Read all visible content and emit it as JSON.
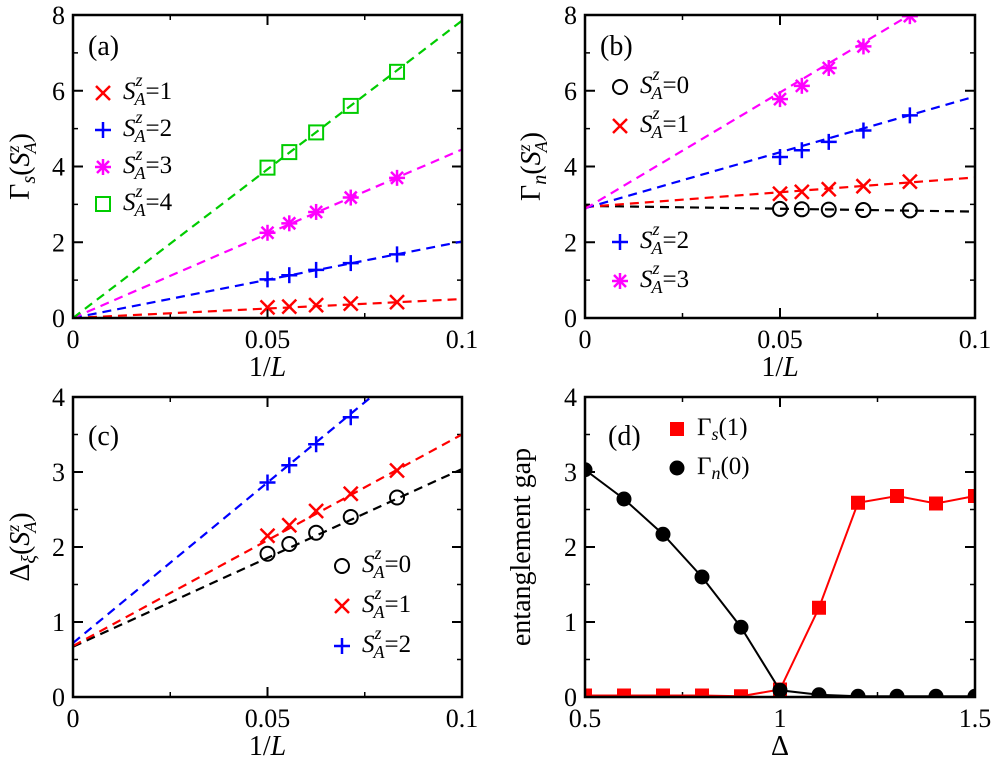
{
  "chart_data": [
    {
      "id": "a",
      "type": "scatter",
      "panel_label": "(a)",
      "xlabel": "1/L",
      "ylabel": "Γs(SzA)",
      "xlim": [
        0,
        0.1
      ],
      "ylim": [
        0,
        8
      ],
      "xticks": [
        "0",
        "0.05",
        "0.1"
      ],
      "yticks": [
        "0",
        "2",
        "4",
        "6",
        "8"
      ],
      "x": [
        0.05,
        0.0556,
        0.0625,
        0.0714,
        0.0833
      ],
      "series": [
        {
          "name": "SzA=1",
          "legend_value": "1",
          "color": "#ff0000",
          "marker": "x",
          "values": [
            0.28,
            0.3,
            0.34,
            0.38,
            0.42
          ],
          "fit": [
            0.0,
            5.0
          ]
        },
        {
          "name": "SzA=2",
          "legend_value": "2",
          "color": "#0000ff",
          "marker": "plus",
          "values": [
            1.02,
            1.13,
            1.27,
            1.45,
            1.68
          ],
          "fit": [
            0.0,
            20.2
          ]
        },
        {
          "name": "SzA=3",
          "legend_value": "3",
          "color": "#ff00ff",
          "marker": "star",
          "values": [
            2.25,
            2.5,
            2.8,
            3.18,
            3.7
          ],
          "fit": [
            0.0,
            44.5
          ]
        },
        {
          "name": "SzA=4",
          "legend_value": "4",
          "color": "#00cc00",
          "marker": "square",
          "values": [
            3.97,
            4.38,
            4.9,
            5.6,
            6.5
          ],
          "fit": [
            0.0,
            78.5
          ]
        }
      ],
      "legend_position": "top-left"
    },
    {
      "id": "b",
      "type": "scatter",
      "panel_label": "(b)",
      "xlabel": "1/L",
      "ylabel": "Γn(SzA)",
      "xlim": [
        0,
        0.1
      ],
      "ylim": [
        0,
        8
      ],
      "xticks": [
        "0",
        "0.05",
        "0.1"
      ],
      "yticks": [
        "0",
        "2",
        "4",
        "6",
        "8"
      ],
      "x": [
        0.05,
        0.0556,
        0.0625,
        0.0714,
        0.0833
      ],
      "series": [
        {
          "name": "SzA=0",
          "legend_value": "0",
          "color": "#000000",
          "marker": "circle",
          "values": [
            2.88,
            2.87,
            2.86,
            2.85,
            2.84
          ],
          "fit": [
            2.96,
            -1.5
          ]
        },
        {
          "name": "SzA=1",
          "legend_value": "1",
          "color": "#ff0000",
          "marker": "x",
          "values": [
            3.28,
            3.33,
            3.4,
            3.48,
            3.6
          ],
          "fit": [
            2.93,
            7.8
          ]
        },
        {
          "name": "SzA=2",
          "legend_value": "2",
          "color": "#0000ff",
          "marker": "plus",
          "values": [
            4.25,
            4.43,
            4.65,
            4.95,
            5.35
          ],
          "fit": [
            2.9,
            29.5
          ]
        },
        {
          "name": "SzA=3",
          "legend_value": "3",
          "color": "#ff00ff",
          "marker": "star",
          "values": [
            5.78,
            6.13,
            6.6,
            7.17,
            7.97
          ],
          "fit": [
            2.88,
            61.5
          ]
        }
      ],
      "legend_position": "top-right / lower-right"
    },
    {
      "id": "c",
      "type": "scatter",
      "panel_label": "(c)",
      "xlabel": "1/L",
      "ylabel": "Δξ(SzA)",
      "xlim": [
        0,
        0.1
      ],
      "ylim": [
        0,
        4
      ],
      "xticks": [
        "0",
        "0.05",
        "0.1"
      ],
      "yticks": [
        "0",
        "1",
        "2",
        "3",
        "4"
      ],
      "x": [
        0.05,
        0.0556,
        0.0625,
        0.0714,
        0.0833
      ],
      "series": [
        {
          "name": "SzA=0",
          "legend_value": "0",
          "color": "#000000",
          "marker": "circle",
          "values": [
            1.91,
            2.04,
            2.19,
            2.4,
            2.66
          ],
          "fit": [
            0.67,
            23.7
          ]
        },
        {
          "name": "SzA=1",
          "legend_value": "1",
          "color": "#ff0000",
          "marker": "x",
          "values": [
            2.15,
            2.29,
            2.48,
            2.71,
            3.02
          ],
          "fit": [
            0.68,
            28.2
          ]
        },
        {
          "name": "SzA=2",
          "legend_value": "2",
          "color": "#0000ff",
          "marker": "plus",
          "values": [
            2.86,
            3.09,
            3.37,
            3.73
          ],
          "fit": [
            0.72,
            42.8
          ]
        }
      ],
      "legend_position": "bottom-right"
    },
    {
      "id": "d",
      "type": "line",
      "panel_label": "(d)",
      "xlabel": "Δ",
      "ylabel": "entanglement gap",
      "xlim": [
        0.5,
        1.5
      ],
      "ylim": [
        0,
        4
      ],
      "xticks": [
        "0.5",
        "1",
        "1.5"
      ],
      "yticks": [
        "0",
        "1",
        "2",
        "3",
        "4"
      ],
      "x": [
        0.5,
        0.6,
        0.7,
        0.8,
        0.9,
        1.0,
        1.1,
        1.2,
        1.3,
        1.4,
        1.5
      ],
      "series": [
        {
          "name": "Γs(1)",
          "color": "#ff0000",
          "marker": "filled-square",
          "values": [
            0.02,
            0.02,
            0.02,
            0.02,
            0.01,
            0.1,
            1.19,
            2.59,
            2.68,
            2.58,
            2.68
          ]
        },
        {
          "name": "Γn(0)",
          "color": "#000000",
          "marker": "filled-circle",
          "values": [
            3.03,
            2.64,
            2.17,
            1.6,
            0.93,
            0.09,
            0.03,
            0.01,
            0.01,
            0.01,
            0.01
          ]
        }
      ],
      "legend_position": "top-right"
    }
  ]
}
